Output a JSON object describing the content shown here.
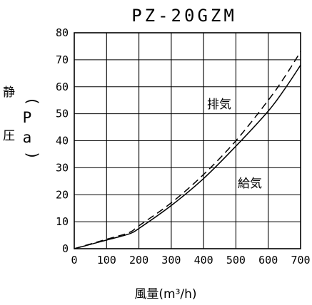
{
  "chart_data": {
    "type": "line",
    "title": "PZ-20GZM",
    "xlabel": "風量(m³/h)",
    "ylabel_chars": [
      "静",
      "圧",
      "(",
      "P",
      "a",
      ")"
    ],
    "xlim": [
      0,
      700
    ],
    "ylim": [
      0,
      80
    ],
    "x_ticks": [
      "0",
      "100",
      "200",
      "300",
      "400",
      "500",
      "600",
      "700"
    ],
    "y_ticks": [
      "0",
      "10",
      "20",
      "30",
      "40",
      "50",
      "60",
      "70",
      "80"
    ],
    "grid": true,
    "series": [
      {
        "name": "排気",
        "style": "dashed",
        "x": [
          0,
          100,
          170,
          200,
          300,
          400,
          500,
          600,
          650,
          700
        ],
        "y": [
          0,
          3.5,
          6,
          8.5,
          17,
          27.5,
          40,
          55,
          63.5,
          73
        ]
      },
      {
        "name": "給気",
        "style": "solid",
        "x": [
          0,
          100,
          170,
          200,
          300,
          400,
          500,
          600,
          650,
          700
        ],
        "y": [
          0,
          3.2,
          5.5,
          7.5,
          16,
          26,
          38,
          51,
          59,
          68
        ]
      }
    ]
  }
}
